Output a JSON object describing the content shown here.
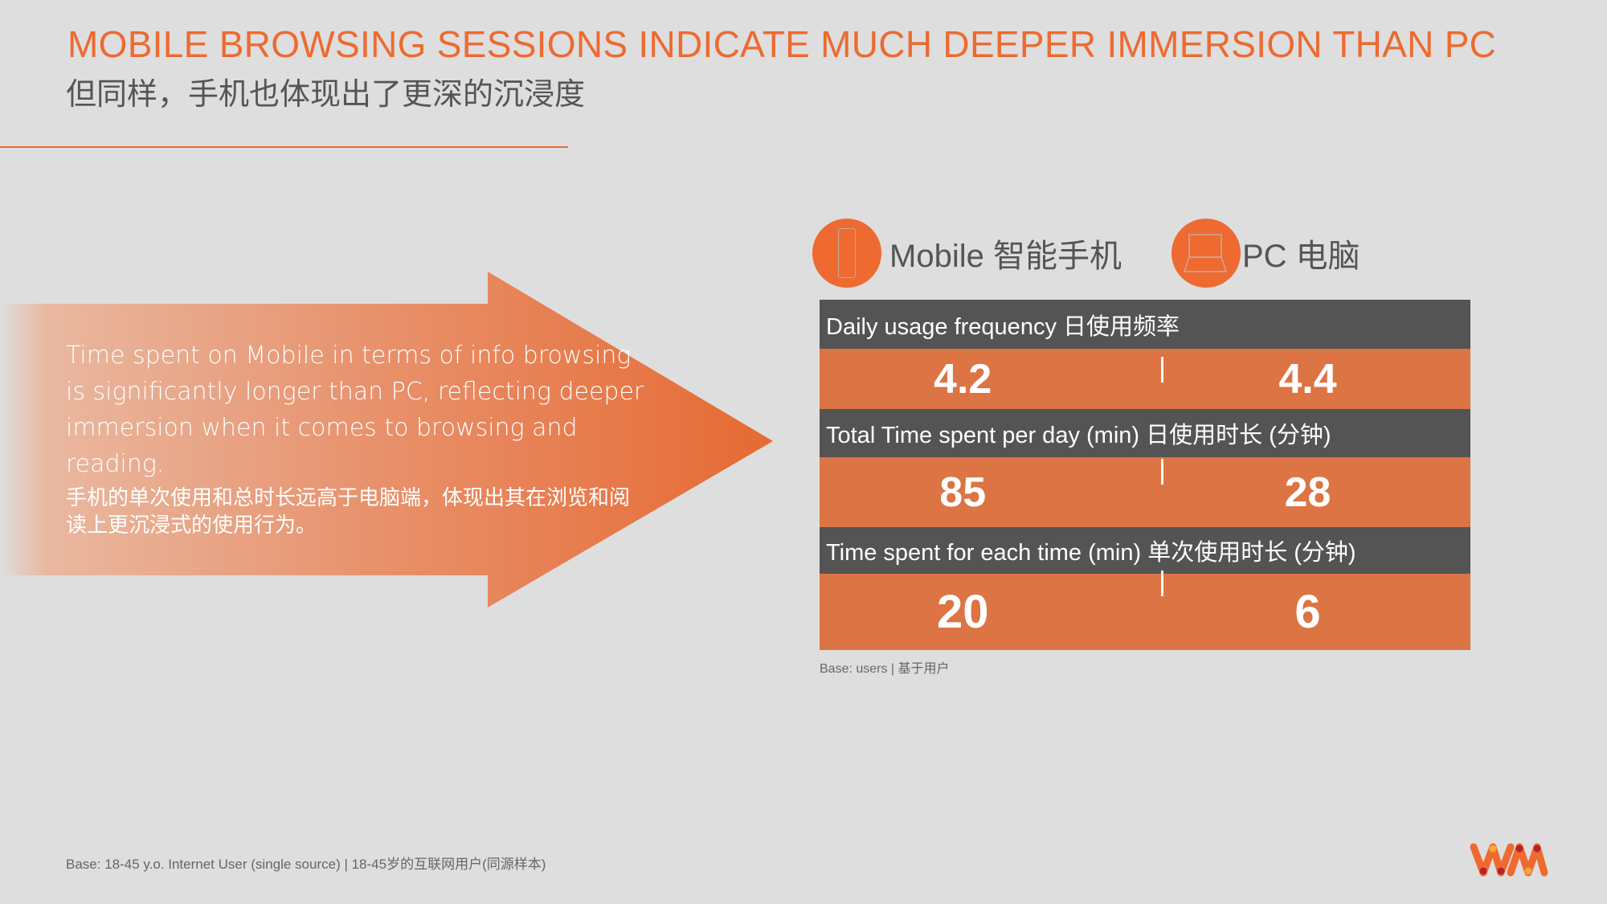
{
  "header": {
    "title": "MOBILE BROWSING SESSIONS INDICATE MUCH DEEPER IMMERSION THAN PC",
    "subtitle": "但同样，手机也体现出了更深的沉浸度"
  },
  "arrow": {
    "text_en": "Time spent on Mobile in terms of info browsing is significantly longer than PC, reflecting deeper immersion when it comes to browsing and reading.",
    "text_cn": "手机的单次使用和总时长远高于电脑端，体现出其在浏览和阅读上更沉浸式的使用行为。"
  },
  "devices": {
    "mobile": {
      "label": "Mobile 智能手机",
      "icon": "smartphone-icon"
    },
    "pc": {
      "label": "PC 电脑",
      "icon": "laptop-icon"
    }
  },
  "table": {
    "rows": [
      {
        "label": "Daily usage frequency 日使用频率",
        "mobile": "4.2",
        "pc": "4.4"
      },
      {
        "label": "Total Time spent per day (min) 日使用时长 (分钟)",
        "mobile": "85",
        "pc": "28"
      },
      {
        "label": "Time spent for each time (min) 单次使用时长 (分钟)",
        "mobile": "20",
        "pc": "6"
      }
    ],
    "base": "Base: users | 基于用户"
  },
  "footer": {
    "base": "Base: 18-45 y.o. Internet User (single source) | 18-45岁的互联网用户(同源样本)"
  },
  "colors": {
    "accent": "#ee6a30",
    "row": "#dd7443",
    "header_row": "#545454",
    "background": "#dedede"
  }
}
